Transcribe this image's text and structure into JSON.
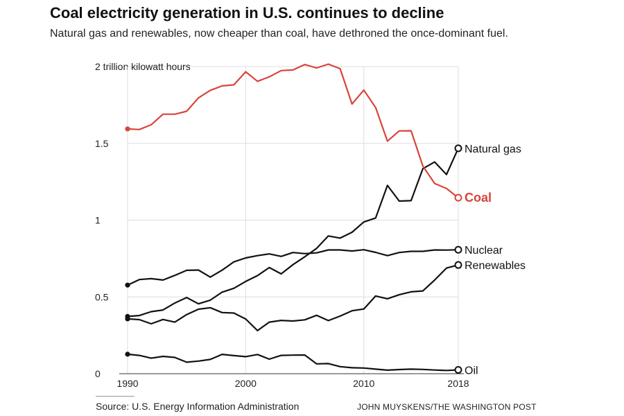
{
  "header": {
    "title": "Coal electricity generation in U.S. continues to decline",
    "subtitle": "Natural gas and renewables, now cheaper than coal, have dethroned the once-dominant fuel."
  },
  "footer": {
    "source": "Source: U.S. Energy Information Administration",
    "credit": "JOHN MUYSKENS/THE WASHINGTON POST"
  },
  "chart_data": {
    "type": "line",
    "x": [
      1990,
      1991,
      1992,
      1993,
      1994,
      1995,
      1996,
      1997,
      1998,
      1999,
      2000,
      2001,
      2002,
      2003,
      2004,
      2005,
      2006,
      2007,
      2008,
      2009,
      2010,
      2011,
      2012,
      2013,
      2014,
      2015,
      2016,
      2017,
      2018
    ],
    "xticks": [
      "1990",
      "2000",
      "2010",
      "2018"
    ],
    "xlim": [
      1990,
      2018
    ],
    "ylim": [
      0,
      2
    ],
    "yticks": [
      {
        "value": 0,
        "label": "0"
      },
      {
        "value": 0.5,
        "label": "0.5"
      },
      {
        "value": 1,
        "label": "1"
      },
      {
        "value": 1.5,
        "label": "1.5"
      },
      {
        "value": 2,
        "label": "2 trillion kilowatt hours"
      }
    ],
    "grid": "vertical at x ticks, horizontal at y ticks",
    "colors": {
      "coal": "#d8443b",
      "other": "#111111",
      "grid": "#dddddd"
    },
    "series": [
      {
        "name": "Coal",
        "emphasis": true,
        "values": [
          1.594,
          1.59,
          1.621,
          1.69,
          1.69,
          1.709,
          1.796,
          1.845,
          1.874,
          1.881,
          1.966,
          1.904,
          1.933,
          1.974,
          1.978,
          2.013,
          1.991,
          2.016,
          1.986,
          1.756,
          1.847,
          1.733,
          1.514,
          1.581,
          1.582,
          1.352,
          1.239,
          1.206,
          1.146
        ]
      },
      {
        "name": "Natural gas",
        "values": [
          0.373,
          0.379,
          0.404,
          0.415,
          0.46,
          0.496,
          0.455,
          0.479,
          0.531,
          0.556,
          0.601,
          0.639,
          0.691,
          0.65,
          0.71,
          0.761,
          0.816,
          0.897,
          0.883,
          0.921,
          0.988,
          1.014,
          1.226,
          1.124,
          1.127,
          1.335,
          1.379,
          1.297,
          1.468
        ]
      },
      {
        "name": "Nuclear",
        "values": [
          0.577,
          0.613,
          0.619,
          0.61,
          0.64,
          0.673,
          0.675,
          0.629,
          0.674,
          0.728,
          0.754,
          0.769,
          0.78,
          0.764,
          0.789,
          0.782,
          0.787,
          0.806,
          0.806,
          0.799,
          0.807,
          0.79,
          0.769,
          0.789,
          0.797,
          0.797,
          0.806,
          0.805,
          0.807
        ]
      },
      {
        "name": "Renewables",
        "values": [
          0.357,
          0.352,
          0.325,
          0.353,
          0.336,
          0.385,
          0.42,
          0.43,
          0.398,
          0.395,
          0.356,
          0.281,
          0.336,
          0.347,
          0.343,
          0.351,
          0.38,
          0.346,
          0.375,
          0.41,
          0.421,
          0.506,
          0.488,
          0.514,
          0.533,
          0.539,
          0.61,
          0.688,
          0.708
        ]
      },
      {
        "name": "Oil",
        "values": [
          0.127,
          0.119,
          0.101,
          0.113,
          0.106,
          0.075,
          0.082,
          0.093,
          0.126,
          0.118,
          0.111,
          0.125,
          0.095,
          0.119,
          0.121,
          0.122,
          0.064,
          0.066,
          0.046,
          0.039,
          0.037,
          0.03,
          0.023,
          0.027,
          0.03,
          0.028,
          0.024,
          0.021,
          0.025
        ]
      }
    ]
  }
}
